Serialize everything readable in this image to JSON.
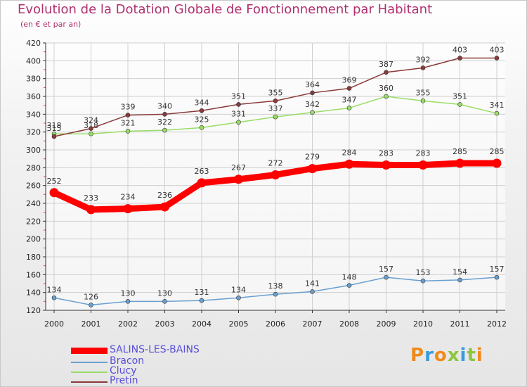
{
  "title": "Evolution de la Dotation Globale de Fonctionnement par Habitant",
  "subtitle": "(en € et par an)",
  "logo": "Proxiti",
  "colors": {
    "title": "#b0306f",
    "legend_text": "#5a4fd8",
    "grid": "#cfcfcf",
    "axis": "#333333"
  },
  "chart_data": {
    "type": "line",
    "title": "Evolution de la Dotation Globale de Fonctionnement par Habitant",
    "subtitle": "(en € et par an)",
    "xlabel": "",
    "ylabel": "",
    "x": [
      "2000",
      "2001",
      "2002",
      "2003",
      "2004",
      "2005",
      "2006",
      "2007",
      "2008",
      "2009",
      "2010",
      "2011",
      "2012"
    ],
    "ylim": [
      120,
      420
    ],
    "yticks": [
      120,
      140,
      160,
      180,
      200,
      220,
      240,
      260,
      280,
      300,
      320,
      340,
      360,
      380,
      400,
      420
    ],
    "grid": true,
    "legend_position": "bottom-left",
    "series": [
      {
        "name": "SALINS-LES-BAINS",
        "color": "#ff0000",
        "values": [
          252,
          233,
          234,
          236,
          263,
          267,
          272,
          279,
          284,
          283,
          283,
          285,
          285
        ]
      },
      {
        "name": "Bracon",
        "color": "#6a9fd0",
        "values": [
          134,
          126,
          130,
          130,
          131,
          134,
          138,
          141,
          148,
          157,
          153,
          154,
          157
        ]
      },
      {
        "name": "Clucy",
        "color": "#99dd66",
        "values": [
          318,
          318,
          321,
          322,
          325,
          331,
          337,
          342,
          347,
          360,
          355,
          351,
          341
        ]
      },
      {
        "name": "Pretin",
        "color": "#8b3a3a",
        "values": [
          315,
          324,
          339,
          340,
          344,
          351,
          355,
          364,
          369,
          387,
          392,
          403,
          403
        ]
      }
    ]
  }
}
